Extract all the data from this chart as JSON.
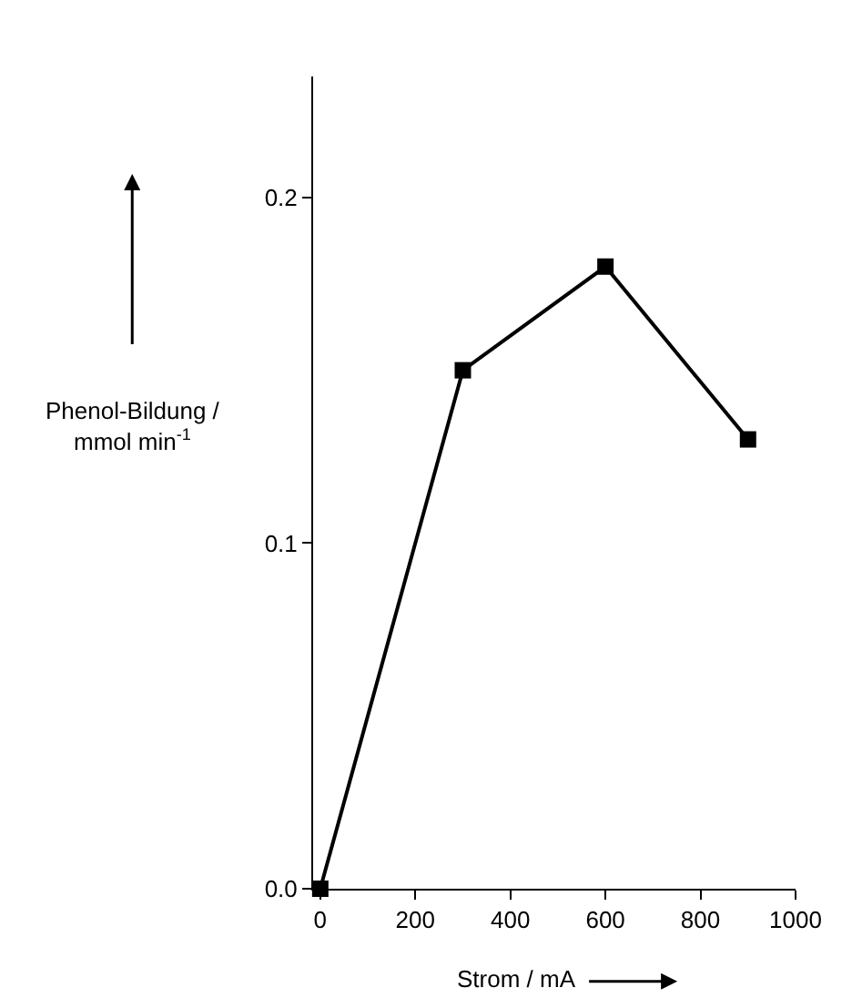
{
  "chart_data": {
    "type": "line",
    "xlabel": "Strom / mA",
    "ylabel": "Phenol-Bildung / mmol min$^{-1}$",
    "x": [
      0,
      300,
      600,
      900
    ],
    "series": [
      {
        "color": "#000000",
        "values": [
          0.0,
          0.15,
          0.18,
          0.13
        ]
      }
    ],
    "xlim": [
      -15,
      1000
    ],
    "xticks": [
      0,
      200,
      400,
      600,
      800,
      1000
    ],
    "ylim": [
      0,
      0.235
    ],
    "yticks": [
      {
        "value": 0,
        "label": "0.0"
      },
      {
        "value": 0.1,
        "label": "0.1"
      },
      {
        "value": 0.2,
        "label": "0.2"
      }
    ],
    "marker": "square",
    "line_style": "solid",
    "legend": false
  }
}
